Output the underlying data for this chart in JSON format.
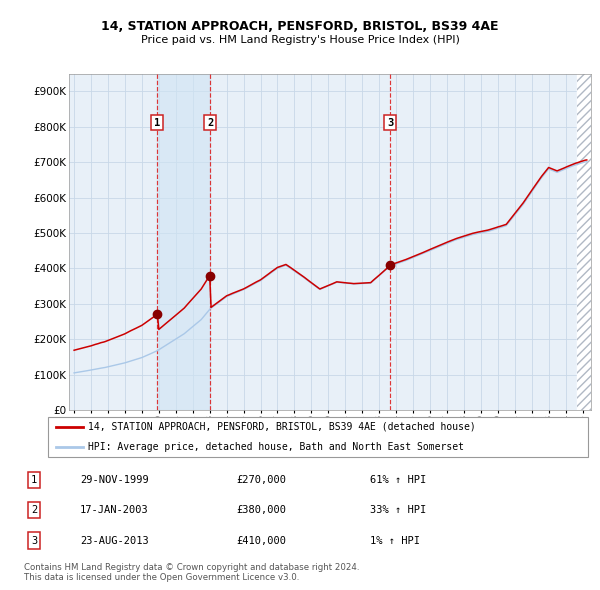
{
  "title1": "14, STATION APPROACH, PENSFORD, BRISTOL, BS39 4AE",
  "title2": "Price paid vs. HM Land Registry's House Price Index (HPI)",
  "ylim": [
    0,
    950000
  ],
  "yticks": [
    0,
    100000,
    200000,
    300000,
    400000,
    500000,
    600000,
    700000,
    800000,
    900000
  ],
  "ytick_labels": [
    "£0",
    "£100K",
    "£200K",
    "£300K",
    "£400K",
    "£500K",
    "£600K",
    "£700K",
    "£800K",
    "£900K"
  ],
  "sales": [
    {
      "label": "1",
      "date_str": "29-NOV-1999",
      "date_num": 1999.91,
      "price": 270000,
      "pct": "61% ↑ HPI"
    },
    {
      "label": "2",
      "date_str": "17-JAN-2003",
      "date_num": 2003.04,
      "price": 380000,
      "pct": "33% ↑ HPI"
    },
    {
      "label": "3",
      "date_str": "23-AUG-2013",
      "date_num": 2013.64,
      "price": 410000,
      "pct": "1% ↑ HPI"
    }
  ],
  "legend_line1": "14, STATION APPROACH, PENSFORD, BRISTOL, BS39 4AE (detached house)",
  "legend_line2": "HPI: Average price, detached house, Bath and North East Somerset",
  "footer1": "Contains HM Land Registry data © Crown copyright and database right 2024.",
  "footer2": "This data is licensed under the Open Government Licence v3.0.",
  "hpi_color": "#aac8e8",
  "price_color": "#cc0000",
  "marker_color": "#880000",
  "grid_color": "#c8d8e8",
  "chart_bg": "#e8f0f8",
  "shade_color": "#d0e4f4",
  "xlim_start": 1994.7,
  "xlim_end": 2025.5
}
